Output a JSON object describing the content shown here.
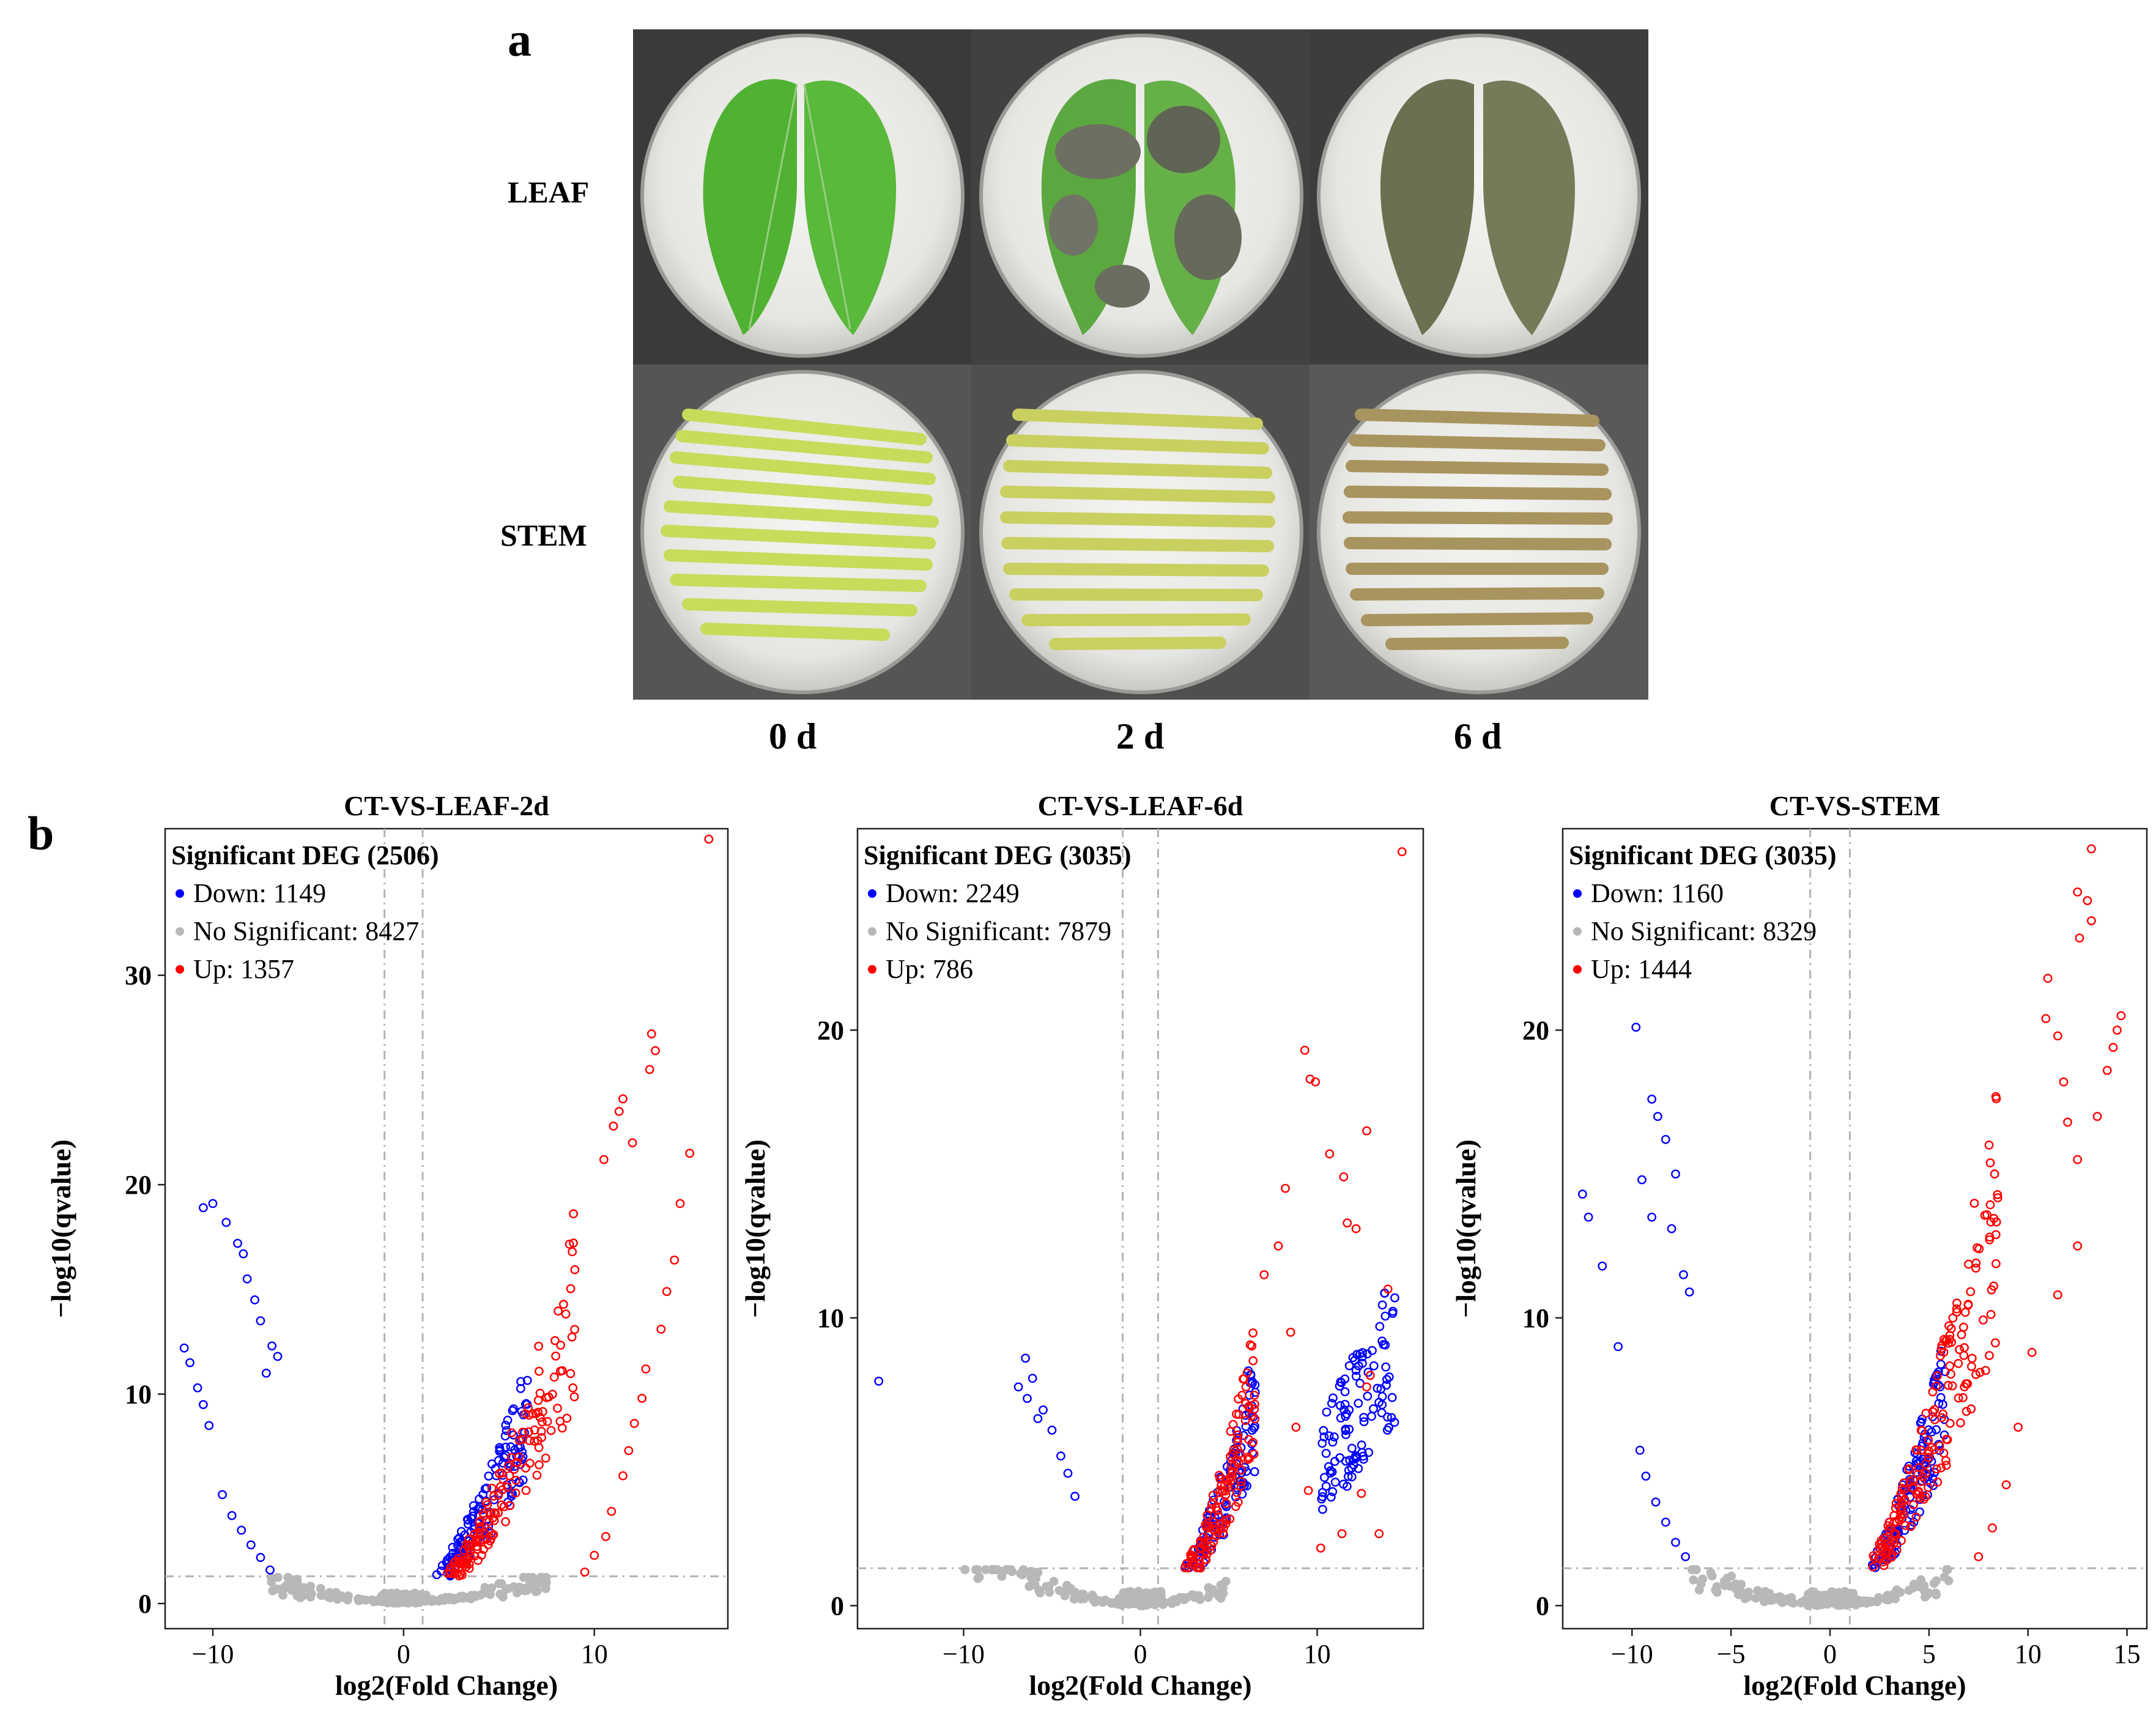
{
  "panel_a": {
    "letter": "a",
    "row_labels": [
      "LEAF",
      "STEM"
    ],
    "col_labels": [
      "0 d",
      "2 d",
      "6 d"
    ]
  },
  "panel_b": {
    "letter": "b"
  },
  "chart_data": [
    {
      "type": "scatter",
      "title": "CT-VS-LEAF-2d",
      "xlabel": "log2(Fold Change)",
      "ylabel": "−log10(qvalue)",
      "xlim": [
        -12.5,
        17
      ],
      "ylim": [
        -1.2,
        37
      ],
      "xticks": [
        -10,
        0,
        10
      ],
      "xtick_labels": [
        "−10",
        "0",
        "10"
      ],
      "yticks": [
        0,
        10,
        20,
        30
      ],
      "ytick_labels": [
        "0",
        "10",
        "20",
        "30"
      ],
      "fc_threshold": 1,
      "q_threshold": 1.3,
      "legend": {
        "title": "Significant DEG (2506)",
        "entries": [
          {
            "label": "Down: 1149",
            "color": "#0000ff"
          },
          {
            "label": "No Significant: 8427",
            "color": "#b8b8b8"
          },
          {
            "label": "Up: 1357",
            "color": "#ff0000"
          }
        ]
      },
      "down_curve": {
        "k": 0.55,
        "p": 1.58,
        "xmin": -6.5,
        "xmax": -1.2,
        "n": 160
      },
      "up_curve": {
        "k": 0.3,
        "p": 1.85,
        "xmin": 1.5,
        "xmax": 9,
        "n": 180
      },
      "ns_points": {
        "xmin": -7,
        "xmax": 7.5,
        "n": 140
      },
      "down": [
        [
          -11.5,
          12.2
        ],
        [
          -11.2,
          11.5
        ],
        [
          -10.8,
          10.3
        ],
        [
          -10.5,
          9.5
        ],
        [
          -10.2,
          8.5
        ],
        [
          -10.5,
          18.9
        ],
        [
          -10,
          19.1
        ],
        [
          -9.3,
          18.2
        ],
        [
          -8.7,
          17.2
        ],
        [
          -8.4,
          16.7
        ],
        [
          -8.2,
          15.5
        ],
        [
          -7.8,
          14.5
        ],
        [
          -7.5,
          13.5
        ],
        [
          -9.5,
          5.2
        ],
        [
          -9,
          4.2
        ],
        [
          -8.5,
          3.5
        ],
        [
          -8,
          2.8
        ],
        [
          -7.5,
          2.2
        ],
        [
          -7,
          1.6
        ],
        [
          -7.2,
          11
        ],
        [
          -6.9,
          12.3
        ],
        [
          -6.6,
          11.8
        ]
      ],
      "up": [
        [
          16,
          36.5
        ],
        [
          13,
          27.2
        ],
        [
          13.2,
          26.4
        ],
        [
          12.9,
          25.5
        ],
        [
          15,
          21.5
        ],
        [
          14.5,
          19.1
        ],
        [
          14.2,
          16.4
        ],
        [
          13.8,
          14.9
        ],
        [
          13.5,
          13.1
        ],
        [
          12.7,
          11.2
        ],
        [
          12.5,
          9.8
        ],
        [
          12.1,
          8.6
        ],
        [
          11.8,
          7.3
        ],
        [
          11.5,
          6.1
        ],
        [
          10.9,
          4.4
        ],
        [
          10.6,
          3.2
        ],
        [
          10,
          2.3
        ],
        [
          9.5,
          1.5
        ],
        [
          11.5,
          24.1
        ],
        [
          11,
          22.8
        ],
        [
          10.5,
          21.2
        ],
        [
          12,
          22
        ],
        [
          11.3,
          23.5
        ]
      ]
    },
    {
      "type": "scatter",
      "title": "CT-VS-LEAF-6d",
      "xlabel": "log2(Fold Change)",
      "ylabel": "−log10(qvalue)",
      "xlim": [
        -16,
        16
      ],
      "ylim": [
        -0.8,
        27
      ],
      "xticks": [
        -10,
        0,
        10
      ],
      "xtick_labels": [
        "−10",
        "0",
        "10"
      ],
      "yticks": [
        0,
        10,
        20
      ],
      "ytick_labels": [
        "0",
        "10",
        "20"
      ],
      "fc_threshold": 1,
      "q_threshold": 1.3,
      "legend": {
        "title": "Significant DEG (3035)",
        "entries": [
          {
            "label": "Down: 2249",
            "color": "#0000ff"
          },
          {
            "label": "No Significant: 7879",
            "color": "#b8b8b8"
          },
          {
            "label": "Up: 786",
            "color": "#ff0000"
          }
        ]
      },
      "down_curve": {
        "k": 0.2,
        "p": 2.0,
        "xmin": -6.5,
        "xmax": -2.5,
        "n": 120
      },
      "down_curve2": {
        "k": 0.09,
        "p": 1.8,
        "xmin": -14.5,
        "xmax": -10.2,
        "n": 110
      },
      "up_curve": {
        "k": 0.18,
        "p": 2.1,
        "xmin": 2.2,
        "xmax": 6.5,
        "n": 140
      },
      "ns_points": {
        "xmin": -10,
        "xmax": 5,
        "n": 130
      },
      "down": [
        [
          -14.8,
          7.8
        ],
        [
          -6.5,
          8.6
        ],
        [
          -6.1,
          7.9
        ],
        [
          -6.9,
          7.6
        ],
        [
          -5.5,
          6.8
        ],
        [
          -5,
          6.1
        ],
        [
          -4.5,
          5.2
        ],
        [
          -4.1,
          4.6
        ],
        [
          -3.7,
          3.8
        ],
        [
          -6.4,
          7.2
        ],
        [
          -5.8,
          6.5
        ]
      ],
      "up": [
        [
          14.8,
          26.2
        ],
        [
          9.3,
          19.3
        ],
        [
          9.6,
          18.3
        ],
        [
          9.9,
          18.2
        ],
        [
          12.8,
          16.5
        ],
        [
          10.7,
          15.7
        ],
        [
          11.5,
          14.9
        ],
        [
          12.2,
          13.1
        ],
        [
          11.7,
          13.3
        ],
        [
          14,
          11
        ],
        [
          13,
          8
        ],
        [
          12.8,
          7.6
        ],
        [
          12.5,
          3.9
        ],
        [
          11.4,
          2.5
        ],
        [
          10.2,
          2
        ],
        [
          9.5,
          4
        ],
        [
          8.5,
          9.5
        ],
        [
          7.8,
          12.5
        ],
        [
          8.2,
          14.5
        ],
        [
          7,
          11.5
        ],
        [
          8.8,
          6.2
        ],
        [
          13.5,
          2.5
        ]
      ]
    },
    {
      "type": "scatter",
      "title": "CT-VS-STEM",
      "xlabel": "log2(Fold Change)",
      "ylabel": "−log10(qvalue)",
      "xlim": [
        -13.5,
        16
      ],
      "ylim": [
        -0.8,
        27
      ],
      "xticks": [
        -10,
        -5,
        0,
        5,
        10,
        15
      ],
      "xtick_labels": [
        "−10",
        "−5",
        "0",
        "5",
        "10",
        "15"
      ],
      "yticks": [
        0,
        10,
        20
      ],
      "ytick_labels": [
        "0",
        "10",
        "20"
      ],
      "fc_threshold": 1,
      "q_threshold": 1.3,
      "legend": {
        "title": "Significant DEG (3035)",
        "entries": [
          {
            "label": "Down: 1160",
            "color": "#0000ff"
          },
          {
            "label": "No Significant: 8329",
            "color": "#b8b8b8"
          },
          {
            "label": "Up: 1444",
            "color": "#ff0000"
          }
        ]
      },
      "down_curve": {
        "k": 0.35,
        "p": 1.85,
        "xmin": -6,
        "xmax": -2,
        "n": 130
      },
      "up_curve": {
        "k": 0.42,
        "p": 1.72,
        "xmin": 1.5,
        "xmax": 8.5,
        "n": 200
      },
      "ns_points": {
        "xmin": -7,
        "xmax": 6,
        "n": 130
      },
      "down": [
        [
          -12.5,
          14.3
        ],
        [
          -12.2,
          13.5
        ],
        [
          -11.5,
          11.8
        ],
        [
          -10.7,
          9
        ],
        [
          -9.8,
          20.1
        ],
        [
          -9,
          17.6
        ],
        [
          -8.7,
          17
        ],
        [
          -8.3,
          16.2
        ],
        [
          -7.8,
          15
        ],
        [
          -9.5,
          14.8
        ],
        [
          -9,
          13.5
        ],
        [
          -8,
          13.1
        ],
        [
          -7.4,
          11.5
        ],
        [
          -7.1,
          10.9
        ],
        [
          -9.6,
          5.4
        ],
        [
          -9.3,
          4.5
        ],
        [
          -8.8,
          3.6
        ],
        [
          -8.3,
          2.9
        ],
        [
          -7.8,
          2.2
        ],
        [
          -7.3,
          1.7
        ]
      ],
      "up": [
        [
          13.2,
          26.3
        ],
        [
          12.5,
          24.8
        ],
        [
          13,
          24.5
        ],
        [
          12.6,
          23.2
        ],
        [
          13.2,
          23.8
        ],
        [
          14.7,
          20.5
        ],
        [
          14.5,
          20
        ],
        [
          14.3,
          19.4
        ],
        [
          14,
          18.6
        ],
        [
          13.5,
          17
        ],
        [
          11.5,
          19.8
        ],
        [
          11,
          21.8
        ],
        [
          10.9,
          20.4
        ],
        [
          11.8,
          18.2
        ],
        [
          12,
          16.8
        ],
        [
          12.5,
          15.5
        ],
        [
          11.5,
          10.8
        ],
        [
          10.2,
          8.8
        ],
        [
          9.5,
          6.2
        ],
        [
          8.9,
          4.2
        ],
        [
          8.2,
          2.7
        ],
        [
          7.5,
          1.7
        ],
        [
          12.5,
          12.5
        ]
      ]
    }
  ]
}
